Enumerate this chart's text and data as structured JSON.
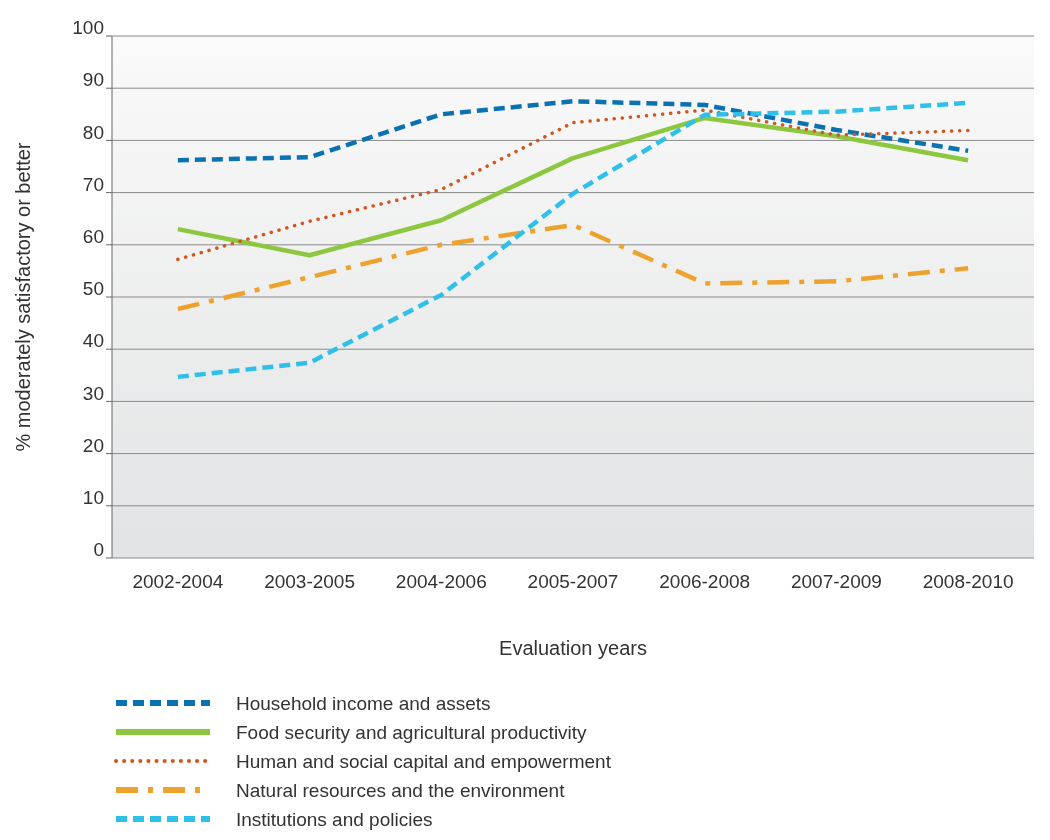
{
  "chart_data": {
    "type": "line",
    "xlabel": "Evaluation years",
    "ylabel": "% moderately satisfactory or better",
    "categories": [
      "2002-2004",
      "2003-2005",
      "2004-2006",
      "2005-2007",
      "2006-2008",
      "2007-2009",
      "2008-2010"
    ],
    "ylim": [
      0,
      100
    ],
    "yticks": [
      0,
      10,
      20,
      30,
      40,
      50,
      60,
      70,
      80,
      90,
      100
    ],
    "grid": "y",
    "legend": "bottom",
    "series": [
      {
        "name": "Household income and assets",
        "color": "#0a72b0",
        "line_style": "dashed",
        "values": [
          76.2,
          76.8,
          85,
          87.5,
          86.8,
          82,
          78
        ]
      },
      {
        "name": "Food security and agricultural productivity",
        "color": "#8dc63f",
        "line_style": "solid",
        "values": [
          63,
          58,
          64.7,
          76.6,
          84.3,
          80.8,
          76.2
        ]
      },
      {
        "name": "Human and social capital and empowerment",
        "color": "#d0561e",
        "line_style": "dotted",
        "values": [
          57.2,
          64.5,
          70.6,
          83.4,
          85.8,
          81,
          81.9
        ]
      },
      {
        "name": "Natural resources and the environment",
        "color": "#eea22e",
        "line_style": "dashdot",
        "values": [
          47.7,
          53.8,
          60,
          63.8,
          52.6,
          53,
          55.5
        ]
      },
      {
        "name": "Institutions and policies",
        "color": "#2ec0e8",
        "line_style": "dashed",
        "values": [
          34.7,
          37.4,
          50.4,
          69.8,
          84.9,
          85.5,
          87.2
        ]
      }
    ]
  }
}
